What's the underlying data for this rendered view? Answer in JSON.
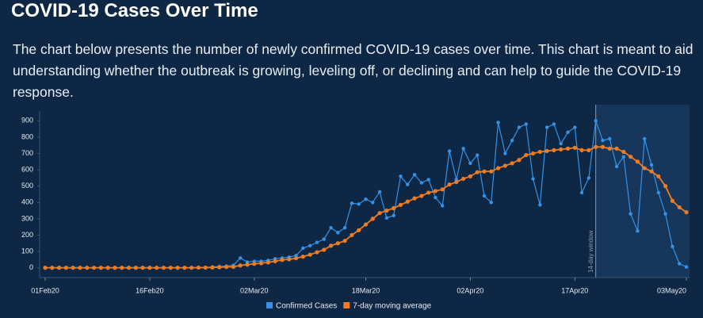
{
  "title": "COVID-19 Cases Over Time",
  "description": "The chart below presents the number of newly confirmed COVID-19 cases over time. This chart is meant to aid understanding whether the outbreak is growing, leveling off, or declining and can help to guide the COVID-19 response.",
  "chart_data": {
    "type": "line",
    "x": [
      "2020-02-01",
      "2020-02-02",
      "2020-02-03",
      "2020-02-04",
      "2020-02-05",
      "2020-02-06",
      "2020-02-07",
      "2020-02-08",
      "2020-02-09",
      "2020-02-10",
      "2020-02-11",
      "2020-02-12",
      "2020-02-13",
      "2020-02-14",
      "2020-02-15",
      "2020-02-16",
      "2020-02-17",
      "2020-02-18",
      "2020-02-19",
      "2020-02-20",
      "2020-02-21",
      "2020-02-22",
      "2020-02-23",
      "2020-02-24",
      "2020-02-25",
      "2020-02-26",
      "2020-02-27",
      "2020-02-28",
      "2020-02-29",
      "2020-03-01",
      "2020-03-02",
      "2020-03-03",
      "2020-03-04",
      "2020-03-05",
      "2020-03-06",
      "2020-03-07",
      "2020-03-08",
      "2020-03-09",
      "2020-03-10",
      "2020-03-11",
      "2020-03-12",
      "2020-03-13",
      "2020-03-14",
      "2020-03-15",
      "2020-03-16",
      "2020-03-17",
      "2020-03-18",
      "2020-03-19",
      "2020-03-20",
      "2020-03-21",
      "2020-03-22",
      "2020-03-23",
      "2020-03-24",
      "2020-03-25",
      "2020-03-26",
      "2020-03-27",
      "2020-03-28",
      "2020-03-29",
      "2020-03-30",
      "2020-03-31",
      "2020-04-01",
      "2020-04-02",
      "2020-04-03",
      "2020-04-04",
      "2020-04-05",
      "2020-04-06",
      "2020-04-07",
      "2020-04-08",
      "2020-04-09",
      "2020-04-10",
      "2020-04-11",
      "2020-04-12",
      "2020-04-13",
      "2020-04-14",
      "2020-04-15",
      "2020-04-16",
      "2020-04-17",
      "2020-04-18",
      "2020-04-19",
      "2020-04-20",
      "2020-04-21",
      "2020-04-22",
      "2020-04-23",
      "2020-04-24",
      "2020-04-25",
      "2020-04-26",
      "2020-04-27",
      "2020-04-28",
      "2020-04-29",
      "2020-04-30",
      "2020-05-01",
      "2020-05-02",
      "2020-05-03"
    ],
    "series": [
      {
        "name": "Confirmed Cases",
        "color": "#3592e6",
        "values": [
          0,
          0,
          0,
          0,
          0,
          0,
          0,
          0,
          0,
          0,
          0,
          0,
          0,
          0,
          0,
          0,
          0,
          0,
          0,
          0,
          0,
          0,
          0,
          2,
          5,
          8,
          10,
          15,
          60,
          35,
          40,
          40,
          45,
          55,
          60,
          65,
          75,
          120,
          135,
          155,
          175,
          245,
          215,
          245,
          395,
          390,
          420,
          400,
          465,
          305,
          320,
          560,
          510,
          570,
          520,
          540,
          430,
          380,
          715,
          540,
          730,
          640,
          690,
          440,
          400,
          890,
          700,
          780,
          860,
          880,
          545,
          385,
          860,
          880,
          760,
          830,
          860,
          460,
          550,
          900,
          780,
          790,
          620,
          680,
          330,
          225,
          790,
          630,
          460,
          330,
          130,
          25,
          5
        ]
      },
      {
        "name": "7-day moving average",
        "color": "#f07c22",
        "values": [
          0,
          0,
          0,
          0,
          0,
          0,
          0,
          0,
          0,
          0,
          0,
          0,
          0,
          0,
          0,
          0,
          0,
          0,
          0,
          0,
          0,
          0,
          1,
          1,
          2,
          3,
          5,
          6,
          14,
          19,
          24,
          28,
          33,
          40,
          48,
          52,
          58,
          68,
          80,
          95,
          110,
          135,
          150,
          165,
          200,
          230,
          265,
          300,
          335,
          350,
          365,
          385,
          405,
          425,
          440,
          460,
          470,
          480,
          510,
          525,
          545,
          560,
          585,
          590,
          590,
          610,
          625,
          640,
          660,
          690,
          700,
          710,
          715,
          720,
          725,
          730,
          735,
          720,
          720,
          740,
          740,
          730,
          730,
          710,
          680,
          650,
          610,
          590,
          560,
          500,
          410,
          370,
          340
        ]
      }
    ],
    "xlim": [
      "2020-02-01",
      "2020-05-03"
    ],
    "xticks": [
      {
        "value": "2020-02-01",
        "label": "01Feb20"
      },
      {
        "value": "2020-02-16",
        "label": "16Feb20"
      },
      {
        "value": "2020-03-02",
        "label": "02Mar20"
      },
      {
        "value": "2020-03-18",
        "label": "18Mar20"
      },
      {
        "value": "2020-04-02",
        "label": "02Apr20"
      },
      {
        "value": "2020-04-17",
        "label": "17Apr20"
      },
      {
        "value": "2020-05-03",
        "label": "03May20"
      }
    ],
    "ylim": [
      -60,
      960
    ],
    "yticks": [
      0,
      100,
      200,
      300,
      400,
      500,
      600,
      700,
      800,
      900
    ],
    "window": {
      "start": "2020-04-20",
      "label": "14-day window"
    },
    "legend": "bottom"
  }
}
